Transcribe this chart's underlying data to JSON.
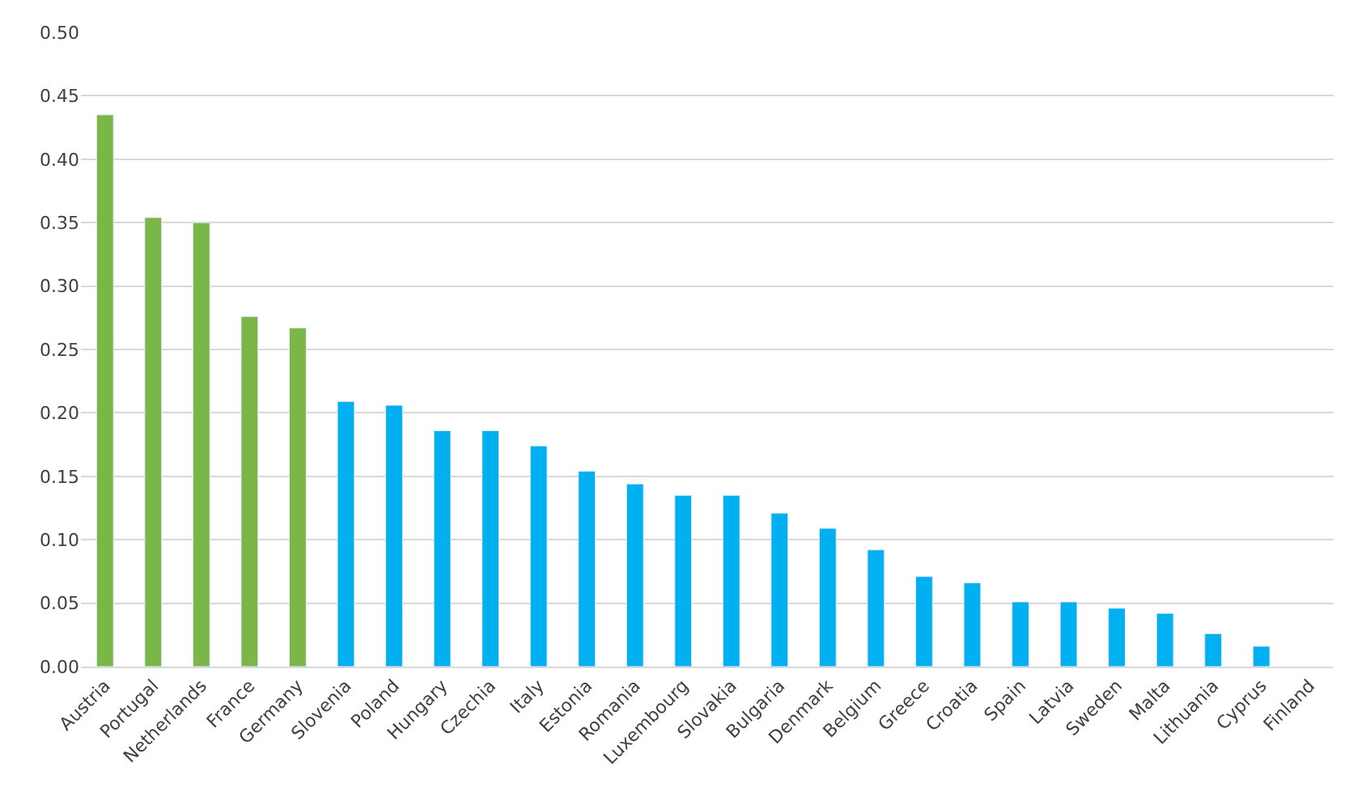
{
  "chart_data": {
    "type": "bar",
    "categories": [
      "Austria",
      "Portugal",
      "Netherlands",
      "France",
      "Germany",
      "Slovenia",
      "Poland",
      "Hungary",
      "Czechia",
      "Italy",
      "Estonia",
      "Romania",
      "Luxembourg",
      "Slovakia",
      "Bulgaria",
      "Denmark",
      "Belgium",
      "Greece",
      "Croatia",
      "Spain",
      "Latvia",
      "Sweden",
      "Malta",
      "Lithuania",
      "Cyprus",
      "Finland"
    ],
    "values": [
      0.435,
      0.354,
      0.35,
      0.276,
      0.267,
      0.209,
      0.206,
      0.186,
      0.186,
      0.174,
      0.154,
      0.144,
      0.135,
      0.135,
      0.121,
      0.109,
      0.092,
      0.071,
      0.066,
      0.051,
      0.051,
      0.046,
      0.042,
      0.026,
      0.016,
      null
    ],
    "colors": [
      "#7ab648",
      "#7ab648",
      "#7ab648",
      "#7ab648",
      "#7ab648",
      "#00b0f0",
      "#00b0f0",
      "#00b0f0",
      "#00b0f0",
      "#00b0f0",
      "#00b0f0",
      "#00b0f0",
      "#00b0f0",
      "#00b0f0",
      "#00b0f0",
      "#00b0f0",
      "#00b0f0",
      "#00b0f0",
      "#00b0f0",
      "#00b0f0",
      "#00b0f0",
      "#00b0f0",
      "#00b0f0",
      "#00b0f0",
      "#00b0f0",
      null
    ],
    "ylim": [
      0,
      0.5
    ],
    "yticks": [
      {
        "value": 0,
        "label": "0.00"
      },
      {
        "value": 0.05,
        "label": "0.05"
      },
      {
        "value": 0.1,
        "label": "0.10"
      },
      {
        "value": 0.15,
        "label": "0.15"
      },
      {
        "value": 0.2,
        "label": "0.20"
      },
      {
        "value": 0.25,
        "label": "0.25"
      },
      {
        "value": 0.3,
        "label": "0.30"
      },
      {
        "value": 0.35,
        "label": "0.35"
      },
      {
        "value": 0.4,
        "label": "0.40"
      },
      {
        "value": 0.45,
        "label": "0.45"
      },
      {
        "value": 0.5,
        "label": "0.50"
      }
    ],
    "grid": "y"
  }
}
